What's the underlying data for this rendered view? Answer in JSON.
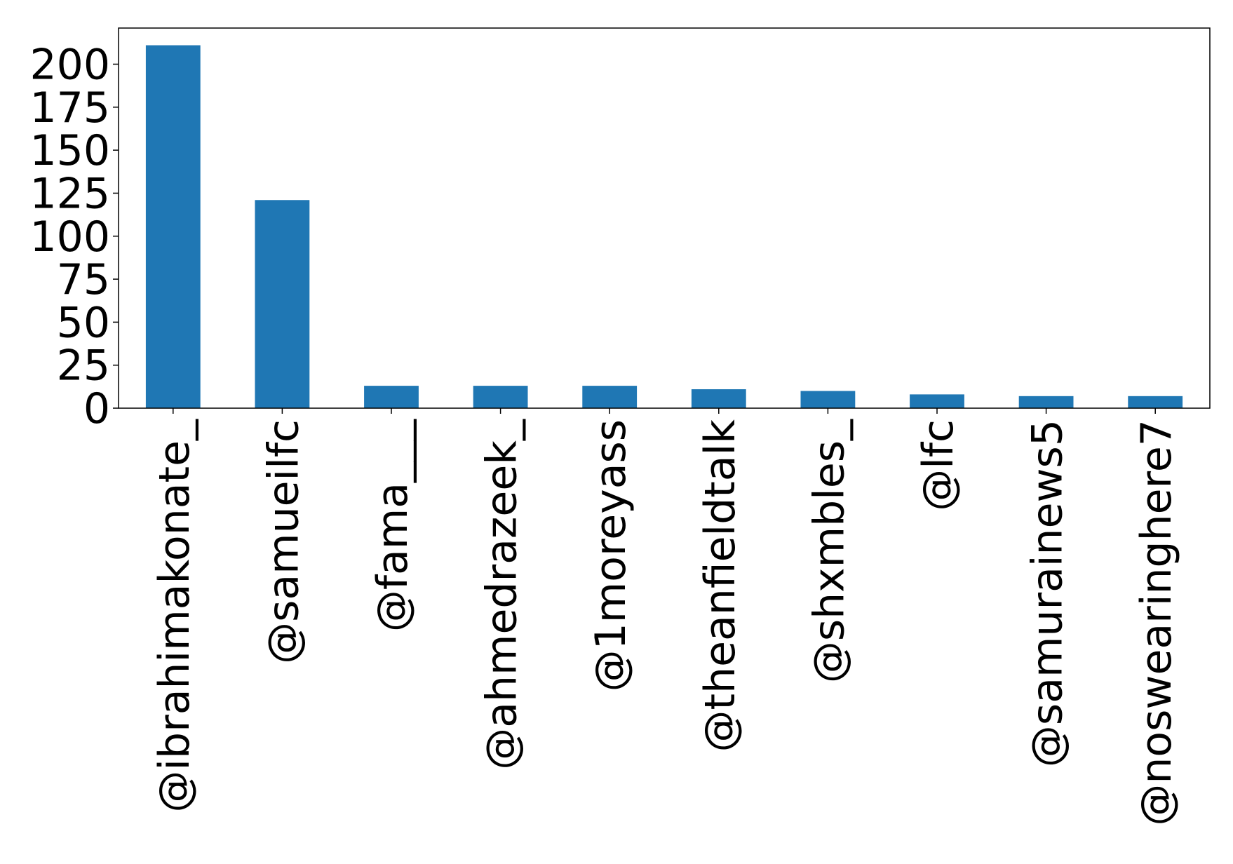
{
  "chart_data": {
    "type": "bar",
    "categories": [
      "@ibrahimakonate_",
      "@samueilfc",
      "@fama___",
      "@ahmedrazeek_",
      "@1moreyass",
      "@theanfieldtalk",
      "@shxmbles_",
      "@lfc",
      "@samurainews5",
      "@noswearinghere7"
    ],
    "values": [
      211,
      121,
      13,
      13,
      13,
      11,
      10,
      8,
      7,
      7
    ],
    "title": "",
    "xlabel": "",
    "ylabel": "",
    "ylim": [
      0,
      221
    ],
    "yticks": [
      0,
      25,
      50,
      75,
      100,
      125,
      150,
      175,
      200
    ],
    "grid": false,
    "bar_color": "#1f77b4"
  }
}
